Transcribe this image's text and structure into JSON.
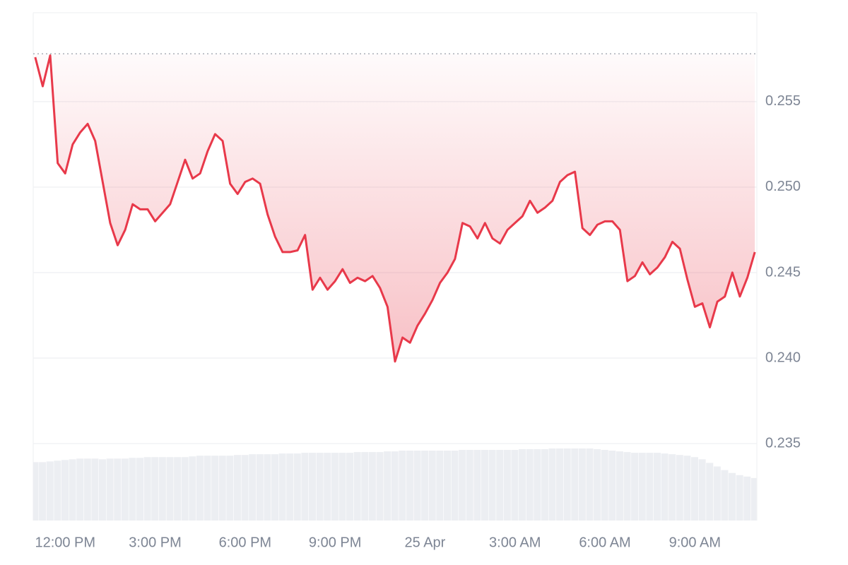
{
  "chart_data": {
    "type": "line",
    "x": [
      660,
      675,
      690,
      705,
      720,
      735,
      750,
      765,
      780,
      795,
      810,
      825,
      840,
      855,
      870,
      885,
      900,
      915,
      930,
      945,
      960,
      975,
      990,
      1005,
      1020,
      1035,
      1050,
      1065,
      1080,
      1095,
      1110,
      1125,
      1140,
      1155,
      1170,
      1185,
      1200,
      1215,
      1230,
      1245,
      1260,
      1275,
      1290,
      1305,
      1320,
      1335,
      1350,
      1365,
      1380,
      1395,
      1410,
      1425,
      1440,
      1455,
      1470,
      1485,
      1500,
      1515,
      1530,
      1545,
      1560,
      1575,
      1590,
      1605,
      1620,
      1635,
      1650,
      1665,
      1680,
      1695,
      1710,
      1725,
      1740,
      1755,
      1770,
      1785,
      1800,
      1815,
      1830,
      1845,
      1860,
      1875,
      1890,
      1905,
      1920,
      1935,
      1950,
      1965,
      1980,
      1995,
      2010,
      2025,
      2040,
      2055,
      2070,
      2085,
      2100
    ],
    "series": [
      {
        "color": "#e8394a",
        "color_above_baseline": "#16c784",
        "values": [
          0.2576,
          0.2559,
          0.2577,
          0.2514,
          0.2508,
          0.2525,
          0.2532,
          0.2537,
          0.2527,
          0.2503,
          0.2479,
          0.2466,
          0.2475,
          0.249,
          0.2487,
          0.2487,
          0.248,
          0.2485,
          0.249,
          0.2503,
          0.2516,
          0.2505,
          0.2508,
          0.2521,
          0.2531,
          0.2527,
          0.2502,
          0.2496,
          0.2503,
          0.2505,
          0.2502,
          0.2484,
          0.2471,
          0.2462,
          0.2462,
          0.2463,
          0.2472,
          0.244,
          0.2447,
          0.244,
          0.2445,
          0.2452,
          0.2444,
          0.2447,
          0.2445,
          0.2448,
          0.2441,
          0.243,
          0.2398,
          0.2412,
          0.2409,
          0.2419,
          0.2426,
          0.2434,
          0.2444,
          0.245,
          0.2458,
          0.2479,
          0.2477,
          0.247,
          0.2479,
          0.247,
          0.2467,
          0.2475,
          0.2479,
          0.2483,
          0.2492,
          0.2485,
          0.2488,
          0.2492,
          0.2503,
          0.2507,
          0.2509,
          0.2476,
          0.2472,
          0.2478,
          0.248,
          0.248,
          0.2475,
          0.2445,
          0.2448,
          0.2456,
          0.2449,
          0.2453,
          0.2459,
          0.2468,
          0.2464,
          0.2446,
          0.243,
          0.2432,
          0.2418,
          0.2433,
          0.2436,
          0.245,
          0.2436,
          0.2447,
          0.2462
        ]
      }
    ],
    "volume": [
      81,
      81,
      82,
      83,
      84,
      85,
      86,
      86,
      86,
      85,
      86,
      86,
      86,
      87,
      87,
      88,
      88,
      88,
      88,
      88,
      88,
      89,
      90,
      90,
      90,
      90,
      90,
      91,
      91,
      92,
      92,
      92,
      92,
      93,
      93,
      93,
      94,
      94,
      94,
      94,
      94,
      94,
      94,
      95,
      95,
      95,
      95,
      96,
      96,
      97,
      97,
      97,
      97,
      97,
      97,
      97,
      97,
      98,
      98,
      98,
      98,
      98,
      98,
      98,
      98,
      99,
      99,
      99,
      99,
      100,
      100,
      100,
      100,
      100,
      100,
      99,
      98,
      97,
      96,
      95,
      94,
      94,
      94,
      94,
      93,
      92,
      91,
      90,
      88,
      85,
      80,
      75,
      70,
      66,
      63,
      61,
      59
    ],
    "volume_color": "#eceef2",
    "baseline": 0.2578,
    "xlim": [
      656,
      2104
    ],
    "xticks": [
      {
        "value": 720,
        "label": "12:00 PM"
      },
      {
        "value": 900,
        "label": "3:00 PM"
      },
      {
        "value": 1080,
        "label": "6:00 PM"
      },
      {
        "value": 1260,
        "label": "9:00 PM"
      },
      {
        "value": 1440,
        "label": "25 Apr"
      },
      {
        "value": 1620,
        "label": "3:00 AM"
      },
      {
        "value": 1800,
        "label": "6:00 AM"
      },
      {
        "value": 1980,
        "label": "9:00 AM"
      }
    ],
    "ylim": [
      0.2305,
      0.2602
    ],
    "yticks": [
      0.235,
      {
        "value": 0.24,
        "label": "0.240"
      },
      0.245,
      {
        "value": 0.25,
        "label": "0.250"
      },
      0.255
    ],
    "grid": true
  }
}
